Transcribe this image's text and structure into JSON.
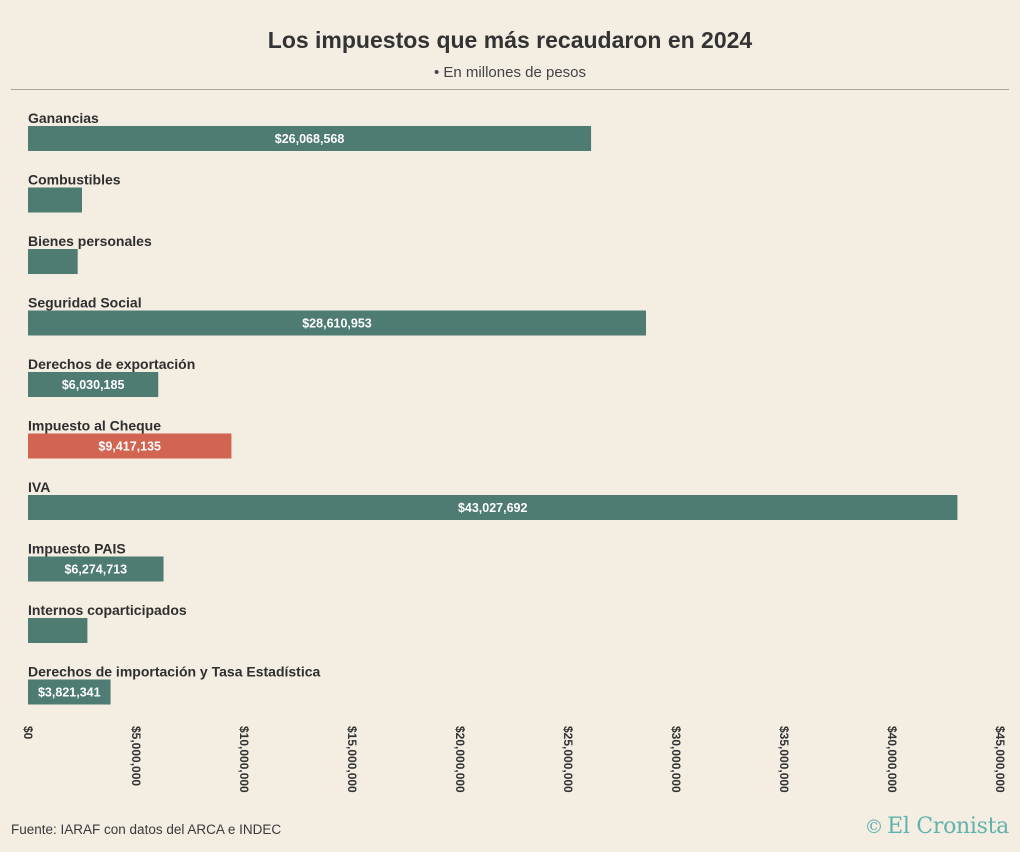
{
  "header": {
    "title": "Los impuestos que más recaudaron en 2024",
    "subtitle": "• En millones de pesos"
  },
  "footer": {
    "source": "Fuente: IARAF con datos del ARCA e INDEC",
    "logo_symbol": "©",
    "logo_text": "El Cronista"
  },
  "colors": {
    "bar": "#4e7b72",
    "highlight": "#d26452",
    "background": "#f3ede2"
  },
  "chart_data": {
    "type": "bar",
    "orientation": "horizontal",
    "categories": [
      "Ganancias",
      "Combustibles",
      "Bienes personales",
      "Seguridad Social",
      "Derechos de exportación",
      "Impuesto al Cheque",
      "IVA",
      "Impuesto PAIS",
      "Internos coparticipados",
      "Derechos de importación y Tasa Estadística"
    ],
    "values": [
      26068568,
      2500000,
      2300000,
      28610953,
      6030185,
      9417135,
      43027692,
      6274713,
      2750000,
      3821341
    ],
    "value_labels": [
      "$26,068,568",
      "",
      "",
      "$28,610,953",
      "$6,030,185",
      "$9,417,135",
      "$43,027,692",
      "$6,274,713",
      "",
      "$3,821,341"
    ],
    "highlight_category": "Impuesto al Cheque",
    "xlim": [
      0,
      45000000
    ],
    "x_ticks": [
      0,
      5000000,
      10000000,
      15000000,
      20000000,
      25000000,
      30000000,
      35000000,
      40000000,
      45000000
    ],
    "x_tick_labels": [
      "$0",
      "$5,000,000",
      "$10,000,000",
      "$15,000,000",
      "$20,000,000",
      "$25,000,000",
      "$30,000,000",
      "$35,000,000",
      "$40,000,000",
      "$45,000,000"
    ],
    "grid": false,
    "legend": "none"
  }
}
